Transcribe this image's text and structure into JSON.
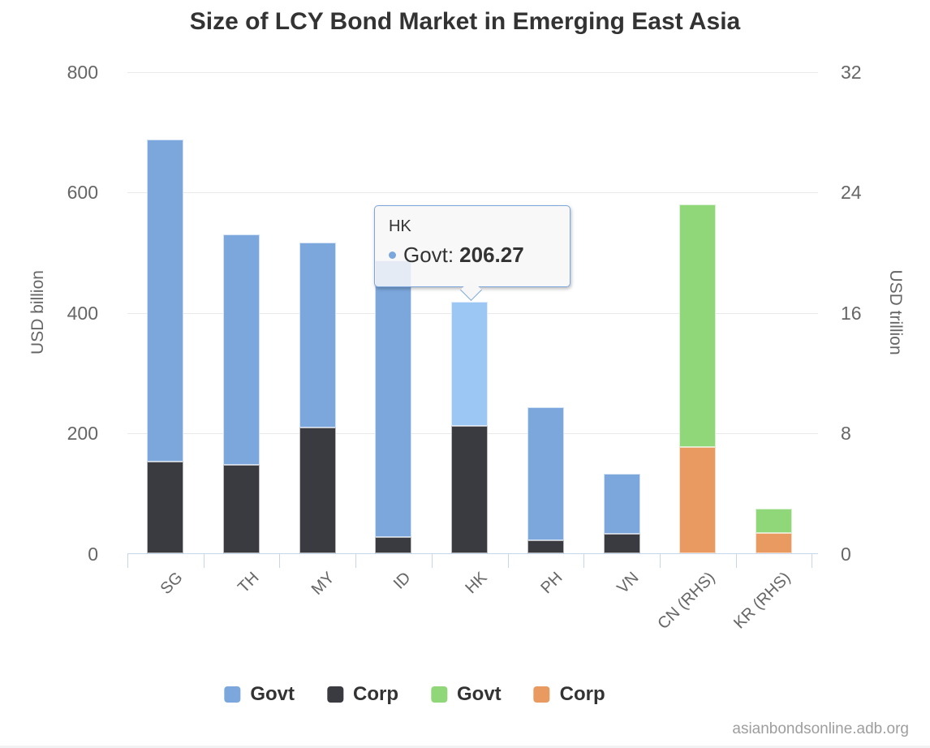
{
  "title": "Size of LCY Bond Market in Emerging East Asia",
  "watermark": "asianbondsonline.adb.org",
  "y_axis_left": {
    "title": "USD billion",
    "ticks": [
      0,
      200,
      400,
      600,
      800
    ],
    "max": 800
  },
  "y_axis_right": {
    "title": "USD trillion",
    "ticks": [
      0,
      8,
      16,
      24,
      32
    ],
    "max": 32
  },
  "x_axis": {
    "categories": [
      "SG",
      "TH",
      "MY",
      "ID",
      "HK",
      "PH",
      "VN",
      "CN (RHS)",
      "KR (RHS)"
    ]
  },
  "tooltip": {
    "category": "HK",
    "series": "Govt",
    "separator": ": ",
    "value": "206.27"
  },
  "legend": [
    {
      "label": "Govt",
      "color": "#7ba7dc"
    },
    {
      "label": "Corp",
      "color": "#3a3b41"
    },
    {
      "label": "Govt",
      "color": "#90d779"
    },
    {
      "label": "Corp",
      "color": "#e89a60"
    }
  ],
  "colors": {
    "govt_lhs": "#7ba7dc",
    "corp_lhs": "#3a3b41",
    "govt_rhs": "#90d779",
    "corp_rhs": "#e89a60",
    "govt_lhs_hover": "#9cc6f4",
    "gridline": "#e9e9e9",
    "axis": "#c6d6ec",
    "tooltip_border": "#7ba7dc"
  },
  "chart_data": {
    "type": "bar",
    "stacked": true,
    "title": "Size of LCY Bond Market in Emerging East Asia",
    "categories": [
      "SG",
      "TH",
      "MY",
      "ID",
      "HK",
      "PH",
      "VN",
      "CN (RHS)",
      "KR (RHS)"
    ],
    "axes": {
      "left": {
        "label": "USD billion",
        "range": [
          0,
          800
        ],
        "tick_step": 200
      },
      "right": {
        "label": "USD trillion",
        "range": [
          0,
          32
        ],
        "tick_step": 8
      }
    },
    "series": [
      {
        "name": "Govt",
        "axis": "left",
        "color": "#7ba7dc",
        "values": [
          535,
          383,
          307,
          460,
          206.27,
          221,
          100,
          null,
          null
        ]
      },
      {
        "name": "Corp",
        "axis": "left",
        "color": "#3a3b41",
        "values": [
          153,
          147,
          210,
          27,
          212,
          22,
          33,
          null,
          null
        ]
      },
      {
        "name": "Govt",
        "axis": "right",
        "color": "#90d779",
        "values": [
          null,
          null,
          null,
          null,
          null,
          null,
          null,
          16.1,
          1.6
        ]
      },
      {
        "name": "Corp",
        "axis": "right",
        "color": "#e89a60",
        "values": [
          null,
          null,
          null,
          null,
          null,
          null,
          null,
          7.1,
          1.4
        ]
      }
    ],
    "highlight": {
      "category": "HK",
      "series": "Govt",
      "tooltip_value": 206.27
    },
    "legend_position": "bottom",
    "grid": "horizontal"
  }
}
